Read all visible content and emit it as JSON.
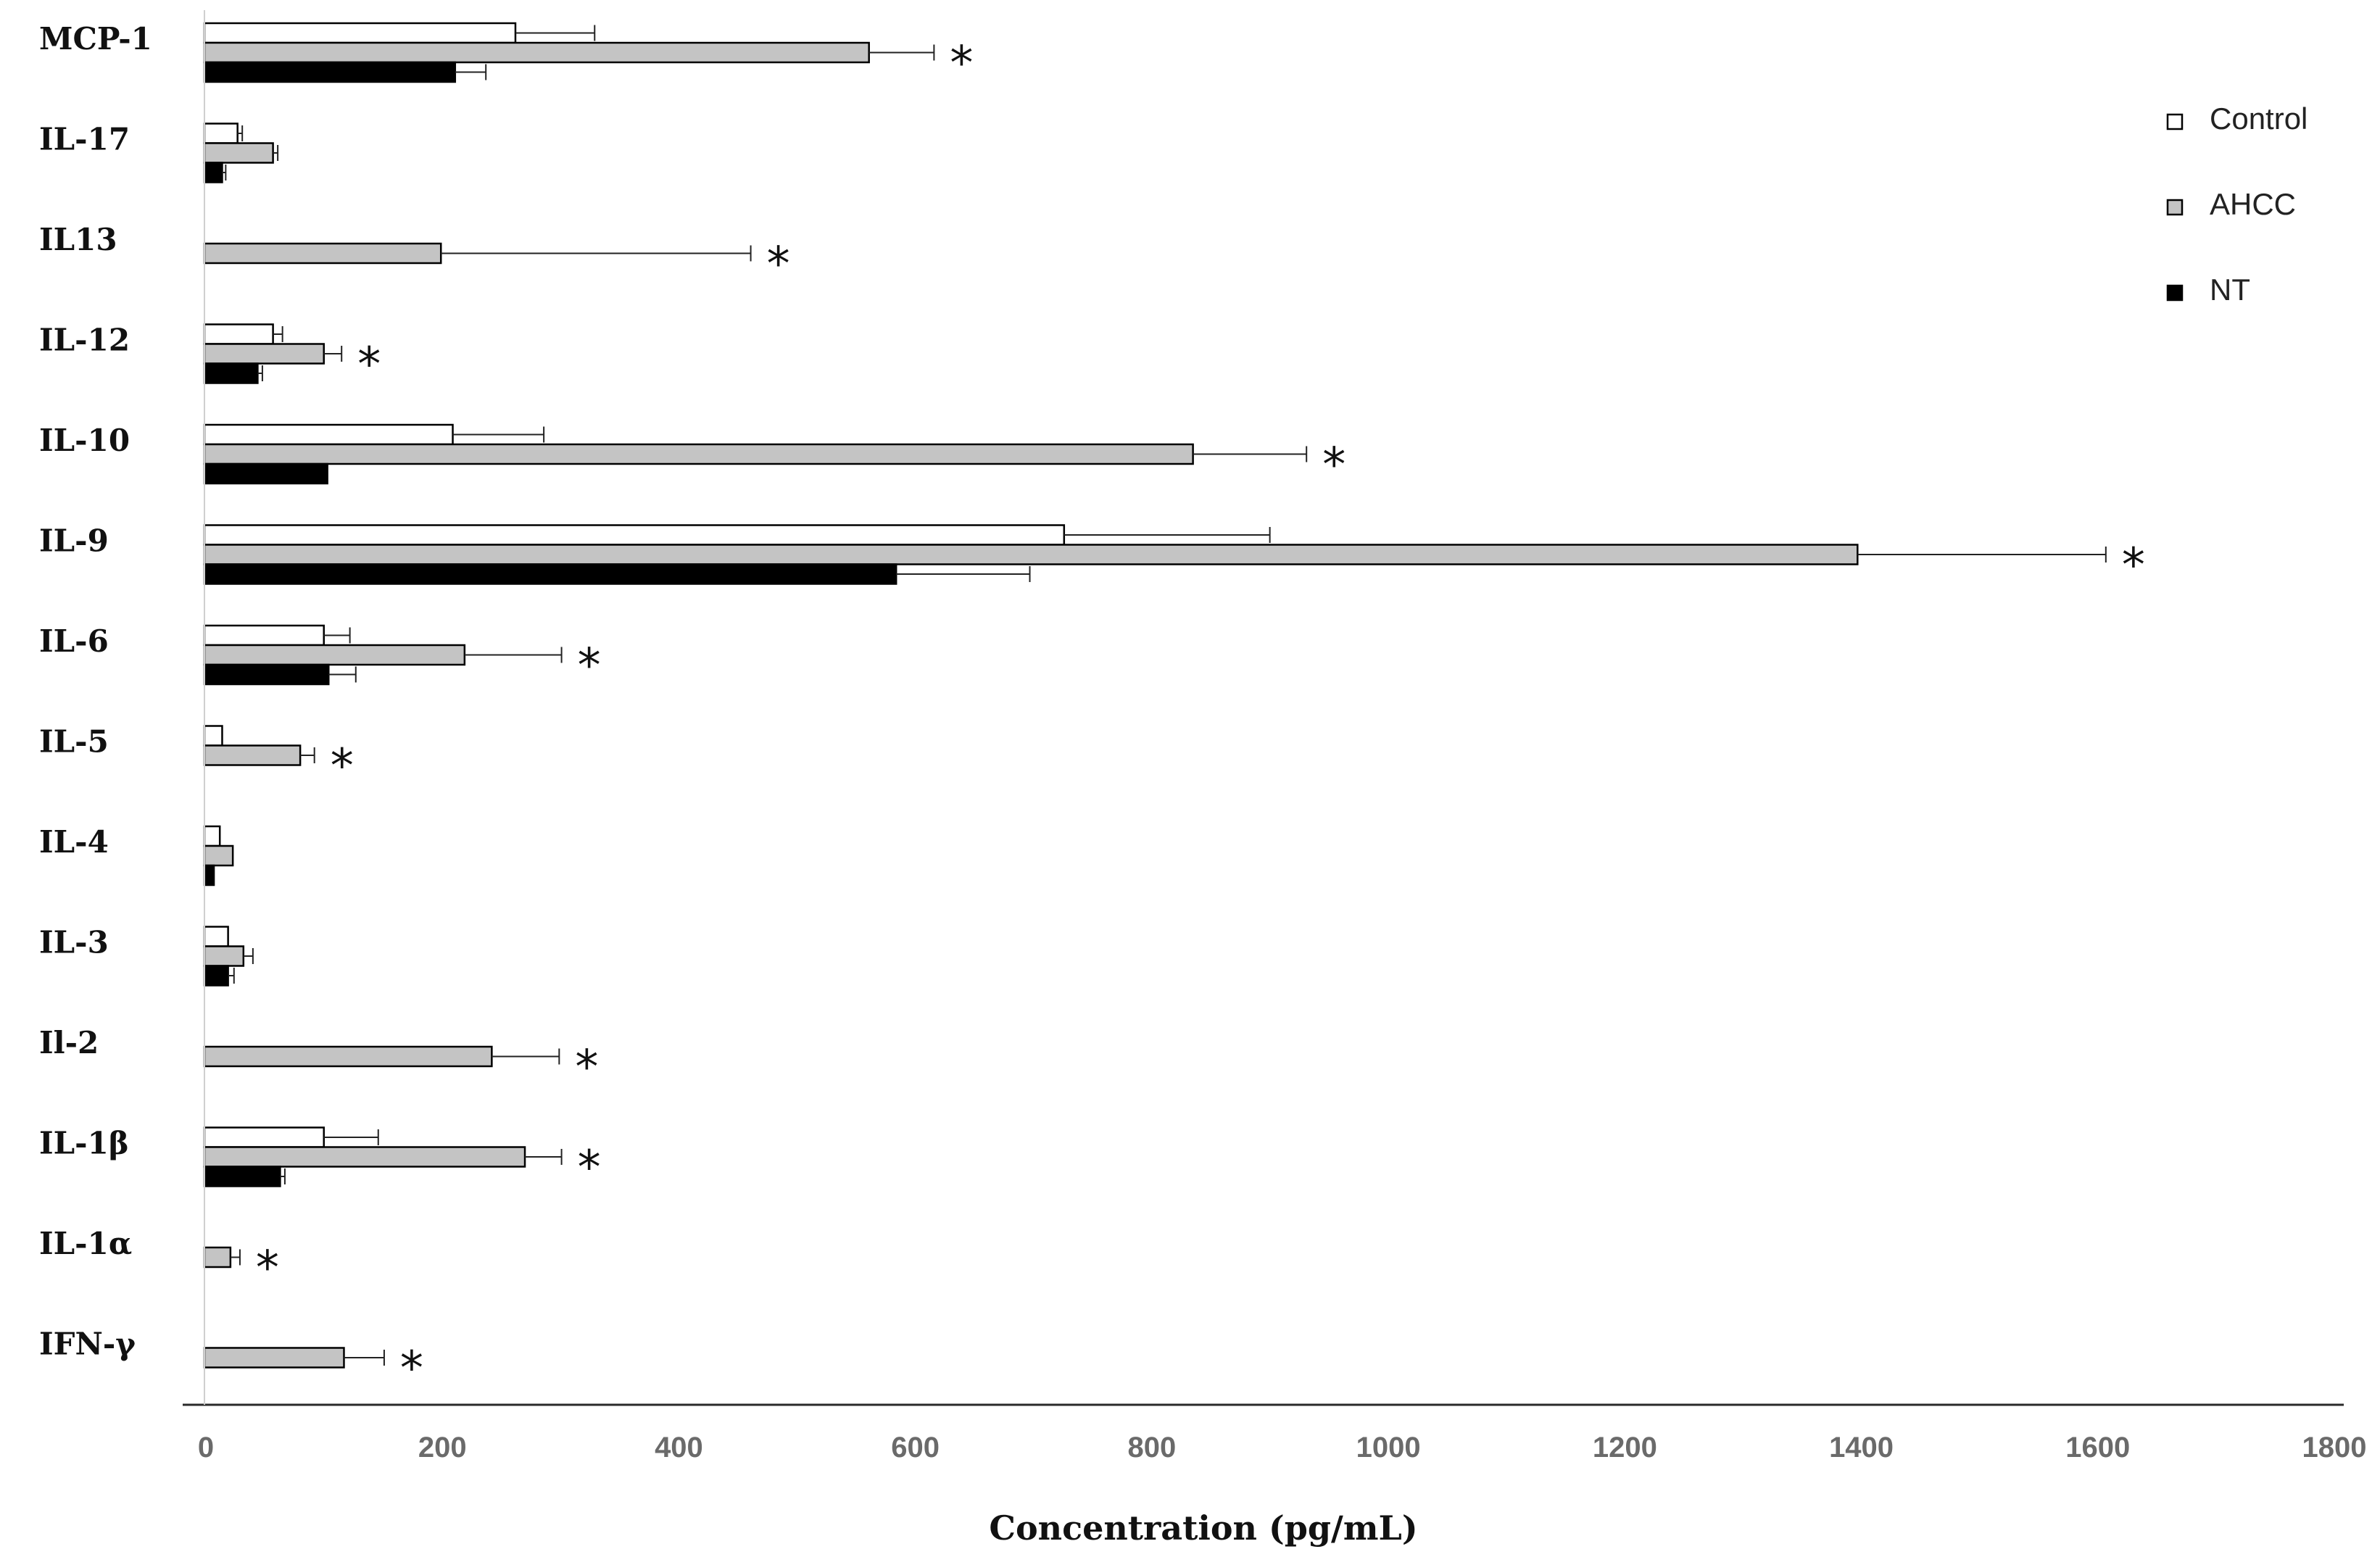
{
  "chart_data": {
    "type": "bar",
    "orientation": "horizontal",
    "xlabel": "Concentration (pg/mL)",
    "ylabel": "",
    "xlim": [
      0,
      1800
    ],
    "ticks": [
      "0",
      "200",
      "400",
      "600",
      "800",
      "1000",
      "1200",
      "1400",
      "1600",
      "1800"
    ],
    "legend_position": "top-right",
    "grid": false,
    "categories": [
      "MCP-1",
      "IL-17",
      "IL13",
      "IL-12",
      "IL-10",
      "IL-9",
      "IL-6",
      "IL-5",
      "IL-4",
      "IL-3",
      "Il-2",
      "IL-1β",
      "IL-1α",
      "IFN-γ"
    ],
    "series": [
      {
        "name": "Control",
        "color": "#ffffff",
        "values": [
          263,
          28,
          0,
          58,
          210,
          727,
          101,
          15,
          13,
          20,
          0,
          101,
          0,
          0
        ],
        "errors": [
          67,
          4,
          0,
          8,
          77,
          174,
          22,
          0,
          0,
          0,
          0,
          46,
          0,
          0
        ]
      },
      {
        "name": "AHCC",
        "color": "#c4c4c4",
        "values": [
          562,
          58,
          200,
          101,
          836,
          1398,
          220,
          81,
          24,
          33,
          243,
          271,
          22,
          118
        ],
        "errors": [
          55,
          4,
          262,
          15,
          96,
          210,
          82,
          12,
          0,
          8,
          57,
          31,
          8,
          34
        ]
      },
      {
        "name": "NT",
        "color": "#000000",
        "values": [
          212,
          15,
          0,
          45,
          104,
          585,
          105,
          0,
          8,
          20,
          0,
          64,
          0,
          0
        ],
        "errors": [
          26,
          3,
          0,
          4,
          0,
          113,
          23,
          0,
          0,
          5,
          0,
          4,
          0,
          0
        ]
      }
    ],
    "annotations": [
      {
        "category": "MCP-1",
        "text": "*"
      },
      {
        "category": "IL13",
        "text": "*"
      },
      {
        "category": "IL-12",
        "text": "*"
      },
      {
        "category": "IL-10",
        "text": "*"
      },
      {
        "category": "IL-9",
        "text": "*"
      },
      {
        "category": "IL-6",
        "text": "*"
      },
      {
        "category": "IL-5",
        "text": "*"
      },
      {
        "category": "Il-2",
        "text": "*"
      },
      {
        "category": "IL-1β",
        "text": "*"
      },
      {
        "category": "IL-1α",
        "text": "*"
      },
      {
        "category": "IFN-γ",
        "text": "*"
      }
    ]
  }
}
